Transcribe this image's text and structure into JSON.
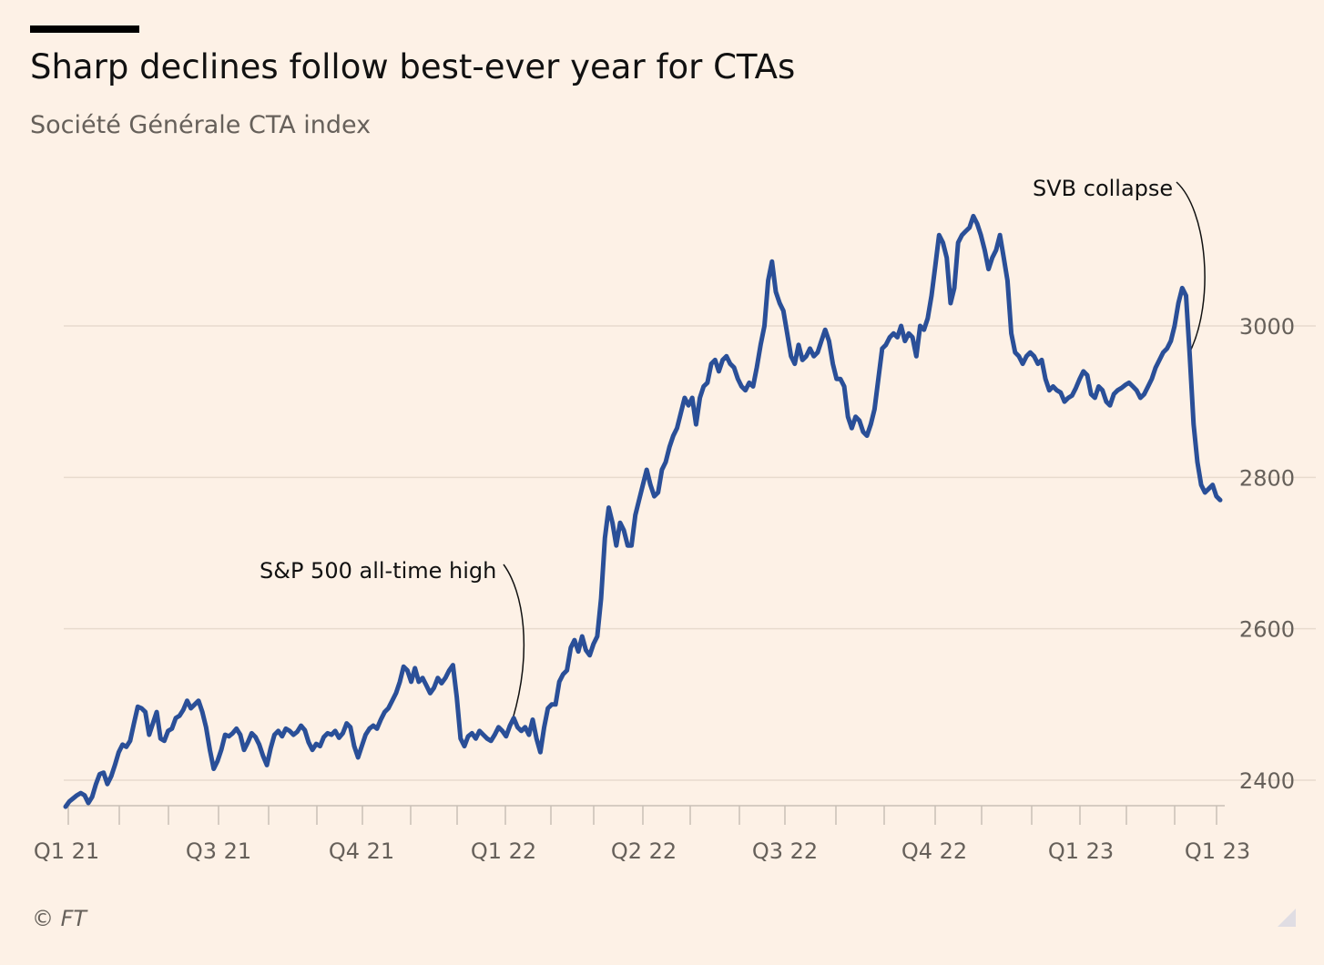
{
  "title": "Sharp declines follow best-ever year for CTAs",
  "subtitle": "Société Générale CTA index",
  "source": "© FT",
  "chart_data": {
    "type": "line",
    "ylim": [
      2365,
      3180
    ],
    "y_ticks": [
      2400,
      2600,
      2800,
      3000
    ],
    "x_tick_labels": [
      "Q1 21",
      "Q3 21",
      "Q4 21",
      "Q1 22",
      "Q2 22",
      "Q3 22",
      "Q4 22",
      "Q1 23",
      "Q1 23"
    ],
    "grid": true,
    "legend": "none",
    "line_color": "#2a4f98",
    "series": [
      {
        "values": [
          2365,
          2372,
          2376,
          2380,
          2383,
          2380,
          2370,
          2378,
          2395,
          2408,
          2410,
          2395,
          2405,
          2420,
          2437,
          2447,
          2444,
          2452,
          2475,
          2497,
          2495,
          2490,
          2460,
          2475,
          2490,
          2455,
          2452,
          2465,
          2468,
          2482,
          2485,
          2493,
          2505,
          2495,
          2500,
          2505,
          2490,
          2470,
          2440,
          2415,
          2425,
          2440,
          2460,
          2458,
          2462,
          2468,
          2460,
          2440,
          2450,
          2462,
          2457,
          2447,
          2432,
          2420,
          2442,
          2460,
          2465,
          2458,
          2468,
          2465,
          2460,
          2464,
          2472,
          2466,
          2450,
          2440,
          2448,
          2445,
          2457,
          2462,
          2460,
          2465,
          2456,
          2462,
          2475,
          2470,
          2445,
          2430,
          2445,
          2460,
          2468,
          2472,
          2468,
          2480,
          2490,
          2495,
          2505,
          2515,
          2530,
          2550,
          2545,
          2530,
          2548,
          2530,
          2535,
          2525,
          2515,
          2522,
          2535,
          2528,
          2535,
          2545,
          2552,
          2510,
          2455,
          2445,
          2458,
          2462,
          2455,
          2465,
          2460,
          2455,
          2452,
          2460,
          2470,
          2465,
          2458,
          2472,
          2482,
          2470,
          2465,
          2470,
          2460,
          2480,
          2455,
          2437,
          2470,
          2495,
          2500,
          2500,
          2530,
          2540,
          2545,
          2575,
          2585,
          2570,
          2590,
          2572,
          2565,
          2580,
          2590,
          2640,
          2720,
          2760,
          2740,
          2710,
          2740,
          2730,
          2710,
          2710,
          2750,
          2770,
          2790,
          2810,
          2790,
          2775,
          2780,
          2810,
          2820,
          2840,
          2855,
          2865,
          2885,
          2905,
          2895,
          2905,
          2870,
          2905,
          2920,
          2925,
          2950,
          2955,
          2940,
          2955,
          2960,
          2950,
          2945,
          2930,
          2920,
          2915,
          2925,
          2920,
          2945,
          2975,
          3000,
          3060,
          3085,
          3045,
          3030,
          3020,
          2990,
          2960,
          2950,
          2975,
          2955,
          2960,
          2970,
          2960,
          2965,
          2980,
          2995,
          2980,
          2950,
          2930,
          2930,
          2920,
          2880,
          2865,
          2880,
          2875,
          2860,
          2855,
          2870,
          2890,
          2930,
          2970,
          2975,
          2985,
          2990,
          2985,
          3000,
          2980,
          2990,
          2985,
          2960,
          3000,
          2995,
          3010,
          3040,
          3080,
          3120,
          3110,
          3090,
          3030,
          3050,
          3110,
          3120,
          3125,
          3130,
          3145,
          3135,
          3120,
          3100,
          3075,
          3090,
          3100,
          3120,
          3090,
          3060,
          2990,
          2965,
          2960,
          2950,
          2960,
          2965,
          2960,
          2950,
          2955,
          2930,
          2915,
          2920,
          2915,
          2912,
          2900,
          2905,
          2908,
          2918,
          2930,
          2940,
          2935,
          2910,
          2905,
          2920,
          2915,
          2900,
          2895,
          2910,
          2915,
          2918,
          2922,
          2925,
          2920,
          2915,
          2905,
          2910,
          2920,
          2930,
          2945,
          2955,
          2965,
          2970,
          2980,
          3000,
          3030,
          3050,
          3040,
          2960,
          2870,
          2820,
          2790,
          2780,
          2785,
          2790,
          2775,
          2770
        ]
      }
    ],
    "annotations": [
      {
        "text": "S&P 500 all-time high"
      },
      {
        "text": "SVB collapse"
      }
    ]
  }
}
